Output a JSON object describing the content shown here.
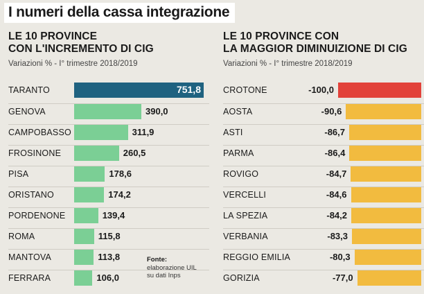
{
  "title": "I numeri della cassa integrazione",
  "source": {
    "label": "Fonte:",
    "lines": [
      "elaborazione UIL",
      "su dati Inps"
    ]
  },
  "colors": {
    "background": "#ebe9e3",
    "highlight_increase": "#1f6280",
    "increase": "#7bcf95",
    "highlight_decrease": "#e2423a",
    "decrease": "#f2bb3f"
  },
  "chart_data": [
    {
      "type": "bar",
      "orientation": "horizontal",
      "title": "LE 10 PROVINCE CON L'INCREMENTO DI CIG",
      "title_lines": [
        "LE 10 PROVINCE",
        "CON L'INCREMENTO DI CIG"
      ],
      "subtitle": "Variazioni % - I° trimestre 2018/2019",
      "categories": [
        "TARANTO",
        "GENOVA",
        "CAMPOBASSO",
        "FROSINONE",
        "PISA",
        "ORISTANO",
        "PORDENONE",
        "ROMA",
        "MANTOVA",
        "FERRARA"
      ],
      "values": [
        751.8,
        390.0,
        311.9,
        260.5,
        178.6,
        174.2,
        139.4,
        115.8,
        113.8,
        106.0
      ],
      "labels": [
        "751,8",
        "390,0",
        "311,9",
        "260,5",
        "178,6",
        "174,2",
        "139,4",
        "115,8",
        "113,8",
        "106,0"
      ]
    },
    {
      "type": "bar",
      "orientation": "horizontal",
      "title": "LE 10 PROVINCE CON LA MAGGIOR DIMINUIZIONE DI CIG",
      "title_lines": [
        "LE 10 PROVINCE CON",
        "LA MAGGIOR DIMINUIZIONE DI CIG"
      ],
      "subtitle": "Variazioni % - I° trimestre 2018/2019",
      "categories": [
        "CROTONE",
        "AOSTA",
        "ASTI",
        "PARMA",
        "ROVIGO",
        "VERCELLI",
        "LA SPEZIA",
        "VERBANIA",
        "REGGIO EMILIA",
        "GORIZIA"
      ],
      "values": [
        -100.0,
        -90.6,
        -86.7,
        -86.4,
        -84.7,
        -84.6,
        -84.2,
        -83.3,
        -80.3,
        -77.0
      ],
      "labels": [
        "-100,0",
        "-90,6",
        "-86,7",
        "-86,4",
        "-84,7",
        "-84,6",
        "-84,2",
        "-83,3",
        "-80,3",
        "-77,0"
      ]
    }
  ]
}
